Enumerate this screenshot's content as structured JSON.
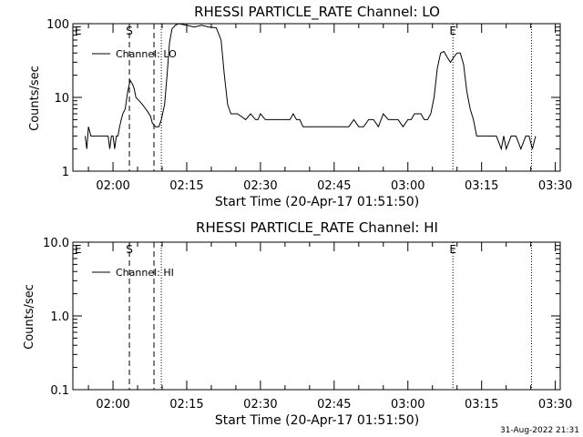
{
  "footer_stamp": "31-Aug-2022 21:31",
  "chart_data": [
    {
      "type": "line",
      "title": "RHESSI PARTICLE_RATE Channel: LO",
      "xlabel": "Start Time (20-Apr-17 01:51:50)",
      "ylabel": "Counts/sec",
      "yscale": "log",
      "ylim": [
        1,
        100
      ],
      "xlim": [
        "01:51:50",
        "03:31:00"
      ],
      "x_ticks": [
        "02:00",
        "02:15",
        "02:30",
        "02:45",
        "03:00",
        "03:15",
        "03:30"
      ],
      "y_ticks": [
        "1",
        "10",
        "100"
      ],
      "legend": "Channel: LO",
      "legend_position": "top-left",
      "markers": [
        {
          "label": "E",
          "time": "01:51:50",
          "style": "none"
        },
        {
          "label": "S",
          "time": "02:03:20",
          "style": "dashed"
        },
        {
          "label": "",
          "time": "02:08:20",
          "style": "dashed"
        },
        {
          "label": "",
          "time": "02:09:50",
          "style": "dotted"
        },
        {
          "label": "E",
          "time": "03:09:10",
          "style": "dotted"
        },
        {
          "label": "",
          "time": "03:25:10",
          "style": "dotted"
        }
      ],
      "series": [
        {
          "name": "Channel: LO",
          "x": [
            "01:54:20",
            "01:54:40",
            "01:55:00",
            "01:55:30",
            "01:56:00",
            "01:57:00",
            "01:58:00",
            "01:59:00",
            "01:59:20",
            "01:59:40",
            "02:00:00",
            "02:00:20",
            "02:00:40",
            "02:01:00",
            "02:01:20",
            "02:01:40",
            "02:02:00",
            "02:02:30",
            "02:03:00",
            "02:03:30",
            "02:04:00",
            "02:04:20",
            "02:04:40",
            "02:05:20",
            "02:06:00",
            "02:07:00",
            "02:07:40",
            "02:08:00",
            "02:08:40",
            "02:09:20",
            "02:09:50",
            "02:10:30",
            "02:11:00",
            "02:11:30",
            "02:12:00",
            "02:12:40",
            "02:13:20",
            "02:15:00",
            "02:16:30",
            "02:18:00",
            "02:19:30",
            "02:21:00",
            "02:22:00",
            "02:22:40",
            "02:23:20",
            "02:24:00",
            "02:24:40",
            "02:25:20",
            "02:27:00",
            "02:28:00",
            "02:29:00",
            "02:29:30",
            "02:30:00",
            "02:31:00",
            "02:32:00",
            "02:33:00",
            "02:34:00",
            "02:35:00",
            "02:36:00",
            "02:36:40",
            "02:37:20",
            "02:38:00",
            "02:38:40",
            "02:39:20",
            "02:40:00",
            "02:41:00",
            "02:42:00",
            "02:43:00",
            "02:44:00",
            "02:45:00",
            "02:46:00",
            "02:47:00",
            "02:48:00",
            "02:49:00",
            "02:50:00",
            "02:51:00",
            "02:52:00",
            "02:53:00",
            "02:54:00",
            "02:55:00",
            "02:56:00",
            "02:57:00",
            "02:58:00",
            "02:59:00",
            "03:00:00",
            "03:00:40",
            "03:01:20",
            "03:02:00",
            "03:02:40",
            "03:03:20",
            "03:04:00",
            "03:04:40",
            "03:05:20",
            "03:06:00",
            "03:06:40",
            "03:07:20",
            "03:08:00",
            "03:08:40",
            "03:09:20",
            "03:10:00",
            "03:10:40",
            "03:11:20",
            "03:12:00",
            "03:12:40",
            "03:13:20",
            "03:14:00",
            "03:15:00",
            "03:16:00",
            "03:17:00",
            "03:18:00",
            "03:19:00",
            "03:19:30",
            "03:20:00",
            "03:21:00",
            "03:22:00",
            "03:23:00",
            "03:24:00",
            "03:24:40",
            "03:25:20",
            "03:26:00"
          ],
          "values": [
            3,
            2,
            4,
            3,
            3,
            3,
            3,
            3,
            2,
            3,
            3,
            2,
            3,
            3,
            4,
            5,
            6,
            7,
            12,
            17,
            15,
            13,
            10,
            9,
            8,
            6.5,
            5.5,
            4.5,
            4,
            4,
            5,
            8,
            20,
            55,
            85,
            95,
            100,
            95,
            90,
            95,
            90,
            88,
            60,
            20,
            8,
            6,
            6,
            6,
            5,
            6,
            5,
            5,
            6,
            5,
            5,
            5,
            5,
            5,
            5,
            6,
            5,
            5,
            4,
            4,
            4,
            4,
            4,
            4,
            4,
            4,
            4,
            4,
            4,
            5,
            4,
            4,
            5,
            5,
            4,
            6,
            5,
            5,
            5,
            4,
            5,
            5,
            6,
            6,
            6,
            5,
            5,
            6,
            10,
            25,
            40,
            42,
            35,
            30,
            35,
            40,
            40,
            28,
            12,
            7,
            5,
            3,
            3,
            3,
            3,
            3,
            2,
            3,
            2,
            3,
            3,
            2,
            3,
            3,
            2,
            3
          ]
        }
      ]
    },
    {
      "type": "line",
      "title": "RHESSI PARTICLE_RATE Channel: HI",
      "xlabel": "Start Time (20-Apr-17 01:51:50)",
      "ylabel": "Counts/sec",
      "yscale": "log",
      "ylim": [
        0.1,
        10.0
      ],
      "xlim": [
        "01:51:50",
        "03:31:00"
      ],
      "x_ticks": [
        "02:00",
        "02:15",
        "02:30",
        "02:45",
        "03:00",
        "03:15",
        "03:30"
      ],
      "y_ticks": [
        "0.1",
        "1.0",
        "10.0"
      ],
      "legend": "Channel: HI",
      "legend_position": "top-left",
      "markers": [
        {
          "label": "E",
          "time": "01:51:50",
          "style": "none"
        },
        {
          "label": "S",
          "time": "02:03:20",
          "style": "dashed"
        },
        {
          "label": "",
          "time": "02:08:20",
          "style": "dashed"
        },
        {
          "label": "",
          "time": "02:09:50",
          "style": "dotted"
        },
        {
          "label": "E",
          "time": "03:09:10",
          "style": "dotted"
        },
        {
          "label": "",
          "time": "03:25:10",
          "style": "dotted"
        }
      ],
      "series": [
        {
          "name": "Channel: HI",
          "x": [],
          "values": []
        }
      ]
    }
  ]
}
